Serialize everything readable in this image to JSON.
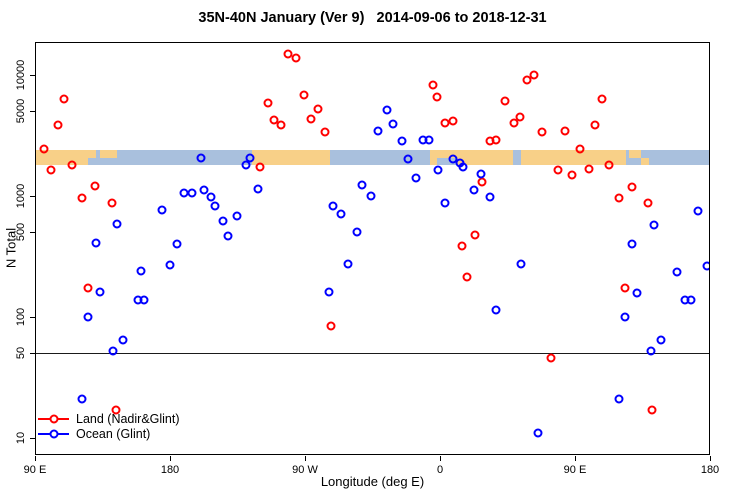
{
  "chart_data": {
    "type": "scatter",
    "title": "35N-40N January (Ver 9)   2014-09-06 to 2018-12-31",
    "xlabel": "Longitude (deg E)",
    "ylabel": "N Total",
    "x_axis": {
      "tick_labels": [
        "90 E",
        "180",
        "90 W",
        "0",
        "90 E",
        "180"
      ],
      "tick_positions_deg": [
        0,
        90,
        180,
        270,
        360,
        450
      ],
      "note": "x is degrees along the axis, starting at 90E and increasing eastward through 180, 90W, 0, 90E to 180 (450 deg total, longitudes 90E-180 shown twice)"
    },
    "y_axis": {
      "scale": "log10",
      "tick_values": [
        10000,
        5000,
        1000,
        500,
        100,
        50,
        10
      ],
      "range": [
        7,
        18700
      ],
      "grid": false
    },
    "reference_line_n": 50,
    "point_format": "[x_deg_along_axis, N_total]",
    "series": [
      {
        "name": "Land (Nadir&Glint)",
        "color": "#ff0000",
        "marker": "open-circle",
        "points": [
          [
            6,
            2460
          ],
          [
            10.5,
            1650
          ],
          [
            15.5,
            3900
          ],
          [
            19.5,
            6300
          ],
          [
            24.5,
            1800
          ],
          [
            31.5,
            960
          ],
          [
            35.5,
            175
          ],
          [
            40,
            1200
          ],
          [
            51.5,
            875
          ],
          [
            54,
            17
          ],
          [
            150,
            1740
          ],
          [
            155,
            5900
          ],
          [
            159.5,
            4230
          ],
          [
            164,
            3880
          ],
          [
            168.5,
            14800
          ],
          [
            174,
            13800
          ],
          [
            179,
            6880
          ],
          [
            184,
            4300
          ],
          [
            188.5,
            5270
          ],
          [
            193,
            3380
          ],
          [
            197,
            85
          ],
          [
            265,
            8200
          ],
          [
            268,
            6580
          ],
          [
            273.5,
            4010
          ],
          [
            278.5,
            4140
          ],
          [
            284.5,
            385
          ],
          [
            288,
            213
          ],
          [
            293.5,
            478
          ],
          [
            298,
            1310
          ],
          [
            303.5,
            2830
          ],
          [
            307.5,
            2880
          ],
          [
            313.5,
            6060
          ],
          [
            319.5,
            4010
          ],
          [
            323.5,
            4460
          ],
          [
            328,
            9040
          ],
          [
            332.5,
            10060
          ],
          [
            338,
            3400
          ],
          [
            344,
            46
          ],
          [
            348.5,
            1650
          ],
          [
            353.5,
            3430
          ],
          [
            358,
            1500
          ],
          [
            363.5,
            2460
          ],
          [
            369,
            1660
          ],
          [
            373,
            3880
          ],
          [
            378,
            6330
          ],
          [
            382.5,
            1800
          ],
          [
            389,
            960
          ],
          [
            393,
            175
          ],
          [
            398,
            1190
          ],
          [
            408.5,
            875
          ],
          [
            411.5,
            17
          ]
        ]
      },
      {
        "name": "Ocean (Glint)",
        "color": "#0000ff",
        "marker": "open-circle",
        "points": [
          [
            31.5,
            21
          ],
          [
            35.5,
            100
          ],
          [
            40.5,
            410
          ],
          [
            43.5,
            160
          ],
          [
            52,
            52
          ],
          [
            54.5,
            583
          ],
          [
            58.5,
            65
          ],
          [
            68.5,
            138
          ],
          [
            70.5,
            240
          ],
          [
            72.5,
            138
          ],
          [
            84.5,
            760
          ],
          [
            90,
            270
          ],
          [
            94.5,
            400
          ],
          [
            99.5,
            1050
          ],
          [
            104.5,
            1050
          ],
          [
            110.5,
            2060
          ],
          [
            112.5,
            1130
          ],
          [
            117.5,
            975
          ],
          [
            120,
            835
          ],
          [
            125.5,
            620
          ],
          [
            128.5,
            470
          ],
          [
            134.5,
            680
          ],
          [
            140.5,
            1810
          ],
          [
            143.5,
            2060
          ],
          [
            148.5,
            1150
          ],
          [
            196,
            160
          ],
          [
            198.5,
            835
          ],
          [
            204,
            715
          ],
          [
            208.5,
            275
          ],
          [
            214.5,
            500
          ],
          [
            218,
            1240
          ],
          [
            224,
            1000
          ],
          [
            228.5,
            3430
          ],
          [
            234.5,
            5170
          ],
          [
            238.5,
            3960
          ],
          [
            244.5,
            2830
          ],
          [
            248.5,
            2040
          ],
          [
            254,
            1410
          ],
          [
            258.5,
            2880
          ],
          [
            262.5,
            2880
          ],
          [
            268.5,
            1630
          ],
          [
            273.5,
            875
          ],
          [
            278.5,
            2030
          ],
          [
            283.5,
            1880
          ],
          [
            285.5,
            1740
          ],
          [
            292.5,
            1130
          ],
          [
            297.5,
            1530
          ],
          [
            303.5,
            980
          ],
          [
            307.5,
            115
          ],
          [
            324,
            272
          ],
          [
            335.5,
            11
          ],
          [
            389.5,
            21
          ],
          [
            393.5,
            100
          ],
          [
            398,
            404
          ],
          [
            401.5,
            157
          ],
          [
            410.5,
            52
          ],
          [
            412.5,
            580
          ],
          [
            417.5,
            65
          ],
          [
            428,
            237
          ],
          [
            433.5,
            138
          ],
          [
            437.5,
            138
          ],
          [
            442,
            750
          ],
          [
            448,
            265
          ]
        ]
      }
    ],
    "map_band": {
      "description": "horizontal strip showing land/ocean along the 35N-40N latitude band",
      "n_range": [
        1800,
        2400
      ],
      "ocean_color": "#a9c0dd",
      "land_color": "#f8d088",
      "land_segments_deg": [
        [
          0,
          35.3
        ],
        [
          144.7,
          196.7
        ],
        [
          263.3,
          385.3
        ]
      ],
      "land_patches_deg": [
        [
          35.3,
          40.7,
          "top"
        ],
        [
          43.3,
          54.7,
          "top"
        ],
        [
          385.3,
          394,
          "full"
        ],
        [
          396,
          404,
          "top"
        ],
        [
          404,
          409.3,
          "bottom"
        ]
      ],
      "ocean_patches_deg": [
        [
          268,
          281,
          "bottom"
        ],
        [
          318.7,
          324,
          "full"
        ]
      ]
    }
  }
}
